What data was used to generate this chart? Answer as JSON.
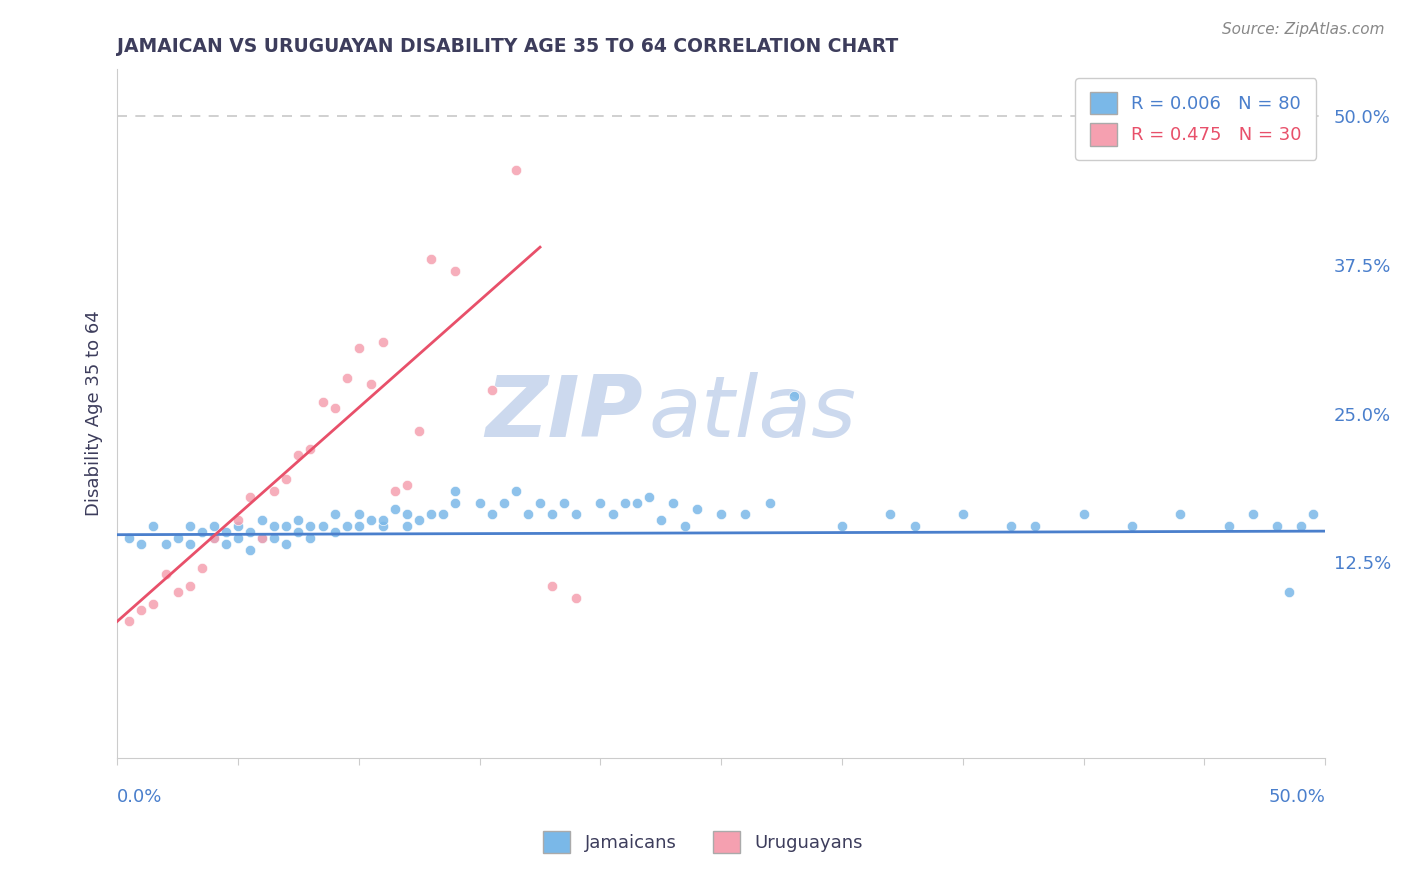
{
  "title": "JAMAICAN VS URUGUAYAN DISABILITY AGE 35 TO 64 CORRELATION CHART",
  "source": "Source: ZipAtlas.com",
  "ylabel": "Disability Age 35 to 64",
  "ytick_positions": [
    0.125,
    0.25,
    0.375,
    0.5
  ],
  "ytick_labels": [
    "12.5%",
    "25.0%",
    "37.5%",
    "50.0%"
  ],
  "xlim": [
    0.0,
    0.5
  ],
  "ylim": [
    -0.04,
    0.54
  ],
  "legend_r1": "R = 0.006",
  "legend_n1": "N = 80",
  "legend_r2": "R = 0.475",
  "legend_n2": "N = 30",
  "watermark_zip": "ZIP",
  "watermark_atlas": "atlas",
  "watermark_color": "#ccd9ee",
  "title_color": "#3d3d5c",
  "source_color": "#888888",
  "axis_label_color": "#3d3d5c",
  "tick_color": "#4a7fcc",
  "background_color": "#ffffff",
  "dashed_line_color": "#c8c8c8",
  "blue_dot_color": "#7ab8e8",
  "pink_dot_color": "#f5a0b0",
  "blue_line_color": "#4a7fcc",
  "pink_line_color": "#e8506a",
  "jamaicans_x": [
    0.005,
    0.01,
    0.015,
    0.02,
    0.025,
    0.03,
    0.03,
    0.035,
    0.04,
    0.04,
    0.045,
    0.045,
    0.05,
    0.05,
    0.055,
    0.055,
    0.06,
    0.06,
    0.065,
    0.065,
    0.07,
    0.07,
    0.075,
    0.075,
    0.08,
    0.08,
    0.085,
    0.09,
    0.09,
    0.095,
    0.1,
    0.1,
    0.105,
    0.11,
    0.11,
    0.115,
    0.12,
    0.12,
    0.125,
    0.13,
    0.135,
    0.14,
    0.14,
    0.15,
    0.155,
    0.16,
    0.165,
    0.17,
    0.175,
    0.18,
    0.185,
    0.19,
    0.2,
    0.205,
    0.21,
    0.215,
    0.22,
    0.225,
    0.23,
    0.235,
    0.24,
    0.25,
    0.26,
    0.27,
    0.28,
    0.3,
    0.32,
    0.33,
    0.35,
    0.37,
    0.38,
    0.4,
    0.42,
    0.44,
    0.46,
    0.47,
    0.48,
    0.485,
    0.49,
    0.495
  ],
  "jamaicans_y": [
    0.145,
    0.14,
    0.155,
    0.14,
    0.145,
    0.14,
    0.155,
    0.15,
    0.145,
    0.155,
    0.14,
    0.15,
    0.145,
    0.155,
    0.135,
    0.15,
    0.145,
    0.16,
    0.145,
    0.155,
    0.14,
    0.155,
    0.15,
    0.16,
    0.145,
    0.155,
    0.155,
    0.15,
    0.165,
    0.155,
    0.155,
    0.165,
    0.16,
    0.155,
    0.16,
    0.17,
    0.155,
    0.165,
    0.16,
    0.165,
    0.165,
    0.175,
    0.185,
    0.175,
    0.165,
    0.175,
    0.185,
    0.165,
    0.175,
    0.165,
    0.175,
    0.165,
    0.175,
    0.165,
    0.175,
    0.175,
    0.18,
    0.16,
    0.175,
    0.155,
    0.17,
    0.165,
    0.165,
    0.175,
    0.265,
    0.155,
    0.165,
    0.155,
    0.165,
    0.155,
    0.155,
    0.165,
    0.155,
    0.165,
    0.155,
    0.165,
    0.155,
    0.1,
    0.155,
    0.165
  ],
  "uruguayans_x": [
    0.005,
    0.01,
    0.015,
    0.02,
    0.025,
    0.03,
    0.035,
    0.04,
    0.05,
    0.055,
    0.06,
    0.065,
    0.07,
    0.075,
    0.08,
    0.085,
    0.09,
    0.095,
    0.1,
    0.105,
    0.11,
    0.115,
    0.12,
    0.125,
    0.13,
    0.14,
    0.155,
    0.165,
    0.18,
    0.19
  ],
  "uruguayans_y": [
    0.075,
    0.085,
    0.09,
    0.115,
    0.1,
    0.105,
    0.12,
    0.145,
    0.16,
    0.18,
    0.145,
    0.185,
    0.195,
    0.215,
    0.22,
    0.26,
    0.255,
    0.28,
    0.305,
    0.275,
    0.31,
    0.185,
    0.19,
    0.235,
    0.38,
    0.37,
    0.27,
    0.455,
    0.105,
    0.095
  ],
  "blue_line_x": [
    0.0,
    0.5
  ],
  "blue_line_slope": 0.006,
  "blue_line_intercept": 0.148,
  "pink_line_x_start": 0.0,
  "pink_line_x_end": 0.175,
  "pink_line_slope": 1.8,
  "pink_line_intercept": 0.075
}
